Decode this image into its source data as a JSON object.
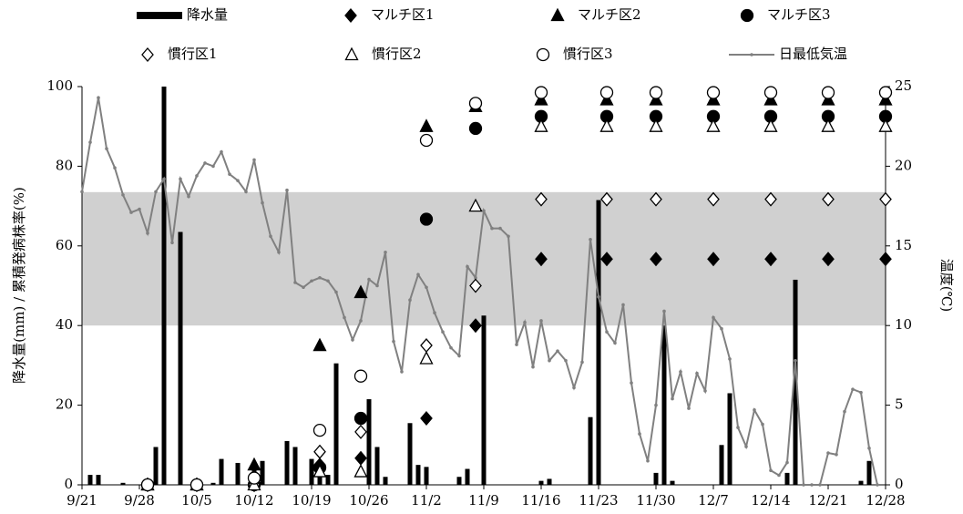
{
  "chart_data": {
    "type": "combo",
    "y_label": "降水量(mm) / 累積発病株率(%)",
    "y2_label": "温度(℃)",
    "xlim": [
      "9/21",
      "12/28"
    ],
    "xticks": [
      "9/21",
      "9/28",
      "10/5",
      "10/12",
      "10/19",
      "10/26",
      "11/2",
      "11/9",
      "11/16",
      "11/23",
      "11/30",
      "12/7",
      "12/14",
      "12/21",
      "12/28"
    ],
    "ylim": [
      0,
      100
    ],
    "yticks": [
      0,
      20,
      40,
      60,
      80,
      100
    ],
    "y2lim": [
      0,
      25
    ],
    "y2ticks": [
      0,
      5,
      10,
      15,
      20,
      25
    ],
    "band": [
      40,
      73.5
    ],
    "band_color": "#d0d0d0",
    "series": [
      {
        "name": "降水量",
        "type": "bar",
        "color": "#000000",
        "x": [
          "9/22",
          "9/23",
          "9/26",
          "9/30",
          "10/1",
          "10/3",
          "10/7",
          "10/8",
          "10/10",
          "10/12",
          "10/13",
          "10/16",
          "10/17",
          "10/19",
          "10/20",
          "10/21",
          "10/22",
          "10/26",
          "10/27",
          "10/28",
          "10/31",
          "11/1",
          "11/2",
          "11/6",
          "11/7",
          "11/9",
          "11/16",
          "11/17",
          "11/22",
          "11/23",
          "11/30",
          "12/1",
          "12/2",
          "12/8",
          "12/9",
          "12/16",
          "12/17",
          "12/25",
          "12/26"
        ],
        "values": [
          2.5,
          2.5,
          0.5,
          9.5,
          100,
          63.5,
          0.5,
          6.5,
          5.5,
          5.5,
          6,
          11,
          9.5,
          6.5,
          6,
          2.5,
          30.5,
          21.5,
          9.5,
          2,
          15.5,
          5,
          4.5,
          2,
          4,
          42.5,
          1,
          1.5,
          17,
          71.5,
          3,
          40,
          1,
          10,
          23,
          3,
          51.5,
          1,
          6
        ]
      },
      {
        "name": "マルチ区1",
        "type": "scatter",
        "marker": "diamond",
        "filled": true,
        "color": "#000000",
        "x": [
          "9/29",
          "10/5",
          "10/12",
          "10/20",
          "10/25",
          "11/2",
          "11/8",
          "11/16",
          "11/24",
          "11/30",
          "12/7",
          "12/14",
          "12/21",
          "12/28"
        ],
        "values": [
          0,
          0,
          0,
          5,
          6.7,
          16.7,
          40,
          56.7,
          56.7,
          56.7,
          56.7,
          56.7,
          56.7,
          56.7
        ]
      },
      {
        "name": "マルチ区2",
        "type": "scatter",
        "marker": "triangle",
        "filled": true,
        "color": "#000000",
        "x": [
          "9/29",
          "10/5",
          "10/12",
          "10/20",
          "10/25",
          "11/2",
          "11/8",
          "11/16",
          "11/24",
          "11/30",
          "12/7",
          "12/14",
          "12/21",
          "12/28"
        ],
        "values": [
          0,
          0,
          5,
          35,
          48.3,
          90,
          95,
          96.7,
          96.7,
          96.7,
          96.7,
          96.7,
          96.7,
          96.7
        ]
      },
      {
        "name": "マルチ区3",
        "type": "scatter",
        "marker": "circle",
        "filled": true,
        "color": "#000000",
        "x": [
          "9/29",
          "10/5",
          "10/12",
          "10/20",
          "10/25",
          "11/2",
          "11/8",
          "11/16",
          "11/24",
          "11/30",
          "12/7",
          "12/14",
          "12/21",
          "12/28"
        ],
        "values": [
          0,
          0,
          0,
          4.3,
          16.7,
          66.7,
          89.5,
          92.5,
          92.5,
          92.5,
          92.5,
          92.5,
          92.5,
          92.5
        ]
      },
      {
        "name": "慣行区1",
        "type": "scatter",
        "marker": "diamond",
        "filled": false,
        "color": "#000000",
        "x": [
          "9/29",
          "10/5",
          "10/12",
          "10/20",
          "10/25",
          "11/2",
          "11/8",
          "11/16",
          "11/24",
          "11/30",
          "12/7",
          "12/14",
          "12/21",
          "12/28"
        ],
        "values": [
          0,
          0,
          0,
          8.3,
          13.3,
          35,
          50,
          71.7,
          71.7,
          71.7,
          71.7,
          71.7,
          71.7,
          71.7
        ]
      },
      {
        "name": "慣行区2",
        "type": "scatter",
        "marker": "triangle",
        "filled": false,
        "color": "#000000",
        "x": [
          "9/29",
          "10/5",
          "10/12",
          "10/20",
          "10/25",
          "11/2",
          "11/8",
          "11/16",
          "11/24",
          "11/30",
          "12/7",
          "12/14",
          "12/21",
          "12/28"
        ],
        "values": [
          0,
          0,
          0,
          3.3,
          3.3,
          31.7,
          70,
          90,
          90,
          90,
          90,
          90,
          90,
          90
        ]
      },
      {
        "name": "慣行区3",
        "type": "scatter",
        "marker": "circle",
        "filled": false,
        "color": "#000000",
        "x": [
          "9/29",
          "10/5",
          "10/12",
          "10/20",
          "10/25",
          "11/2",
          "11/8",
          "11/16",
          "11/24",
          "11/30",
          "12/7",
          "12/14",
          "12/21",
          "12/28"
        ],
        "values": [
          0,
          0,
          1.7,
          13.7,
          27.3,
          86.5,
          95.8,
          98.5,
          98.5,
          98.5,
          98.5,
          98.5,
          98.5,
          98.5
        ]
      },
      {
        "name": "日最低気温",
        "type": "line",
        "axis": "y2",
        "color": "#808080",
        "x": [
          "9/21",
          "9/22",
          "9/23",
          "9/24",
          "9/25",
          "9/26",
          "9/27",
          "9/28",
          "9/29",
          "9/30",
          "10/1",
          "10/2",
          "10/3",
          "10/4",
          "10/5",
          "10/6",
          "10/7",
          "10/8",
          "10/9",
          "10/10",
          "10/11",
          "10/12",
          "10/13",
          "10/14",
          "10/15",
          "10/16",
          "10/17",
          "10/18",
          "10/19",
          "10/20",
          "10/21",
          "10/22",
          "10/23",
          "10/24",
          "10/25",
          "10/26",
          "10/27",
          "10/28",
          "10/29",
          "10/30",
          "10/31",
          "11/1",
          "11/2",
          "11/3",
          "11/4",
          "11/5",
          "11/6",
          "11/7",
          "11/8",
          "11/9",
          "11/10",
          "11/11",
          "11/12",
          "11/13",
          "11/14",
          "11/15",
          "11/16",
          "11/17",
          "11/18",
          "11/19",
          "11/20",
          "11/21",
          "11/22",
          "11/23",
          "11/24",
          "11/25",
          "11/26",
          "11/27",
          "11/28",
          "11/29",
          "11/30",
          "12/1",
          "12/2",
          "12/3",
          "12/4",
          "12/5",
          "12/6",
          "12/7",
          "12/8",
          "12/9",
          "12/10",
          "12/11",
          "12/12",
          "12/13",
          "12/14",
          "12/15",
          "12/16",
          "12/17",
          "12/18",
          "12/19",
          "12/20",
          "12/21",
          "12/22",
          "12/23",
          "12/24",
          "12/25",
          "12/26",
          "12/27"
        ],
        "values": [
          18.4,
          21.5,
          24.3,
          21.1,
          19.9,
          18.2,
          17.1,
          17.3,
          15.8,
          18.4,
          19.2,
          15.2,
          19.2,
          18.1,
          19.4,
          20.2,
          20.0,
          20.9,
          19.5,
          19.1,
          18.4,
          20.4,
          17.7,
          15.6,
          14.6,
          18.5,
          12.7,
          12.4,
          12.8,
          13.0,
          12.8,
          12.1,
          10.5,
          9.1,
          10.3,
          12.9,
          12.5,
          14.6,
          9.0,
          7.1,
          11.6,
          13.2,
          12.4,
          10.8,
          9.6,
          8.6,
          8.1,
          13.7,
          13.0,
          17.2,
          16.1,
          16.1,
          15.6,
          8.8,
          10.2,
          7.4,
          10.3,
          7.8,
          8.4,
          7.8,
          6.1,
          7.7,
          15.4,
          11.8,
          9.6,
          8.9,
          11.3,
          6.4,
          3.2,
          1.5,
          5.0,
          10.9,
          5.4,
          7.1,
          4.8,
          7.0,
          5.9,
          10.5,
          9.8,
          7.9,
          3.6,
          2.4,
          4.7,
          3.8,
          0.9,
          0.6,
          1.4,
          7.8,
          0,
          0,
          0,
          2.0,
          1.9,
          4.6,
          6.0,
          5.8,
          2.3,
          0
        ]
      }
    ]
  }
}
